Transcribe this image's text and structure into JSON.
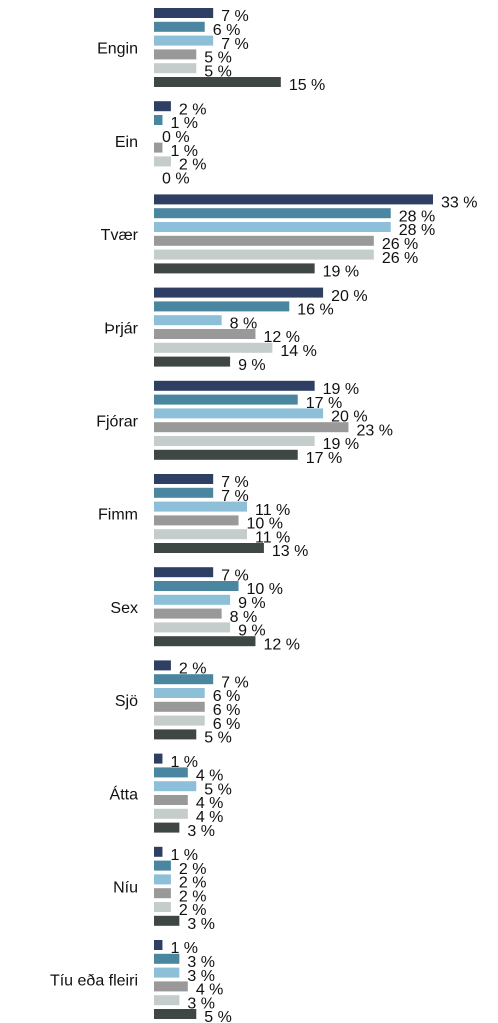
{
  "chart_data": {
    "type": "bar",
    "orientation": "horizontal",
    "categories": [
      "Engin",
      "Ein",
      "Tvær",
      "Þrjár",
      "Fjórar",
      "Fimm",
      "Sex",
      "Sjö",
      "Átta",
      "Níu",
      "Tíu eða fleiri"
    ],
    "series": [
      {
        "color": "#2e3f63",
        "values": [
          7,
          2,
          33,
          20,
          19,
          7,
          7,
          2,
          1,
          1,
          1
        ],
        "value_labels": [
          "7 %",
          "2 %",
          "33 %",
          "20 %",
          "19 %",
          "7 %",
          "7 %",
          "2 %",
          "1 %",
          "1 %",
          "1 %"
        ]
      },
      {
        "color": "#4a86a0",
        "values": [
          6,
          1,
          28,
          16,
          17,
          7,
          10,
          7,
          4,
          2,
          3
        ],
        "value_labels": [
          "6 %",
          "1 %",
          "28 %",
          "16 %",
          "17 %",
          "7 %",
          "10 %",
          "7 %",
          "4 %",
          "2 %",
          "3 %"
        ]
      },
      {
        "color": "#8dbfd9",
        "values": [
          7,
          0,
          28,
          8,
          20,
          11,
          9,
          6,
          5,
          2,
          3
        ],
        "value_labels": [
          "7 %",
          "0 %",
          "28 %",
          "8 %",
          "20 %",
          "11 %",
          "9 %",
          "6 %",
          "5 %",
          "2 %",
          "3 %"
        ]
      },
      {
        "color": "#999999",
        "values": [
          5,
          1,
          26,
          12,
          23,
          10,
          8,
          6,
          4,
          2,
          4
        ],
        "value_labels": [
          "5 %",
          "1 %",
          "26 %",
          "12 %",
          "23 %",
          "10 %",
          "8 %",
          "6 %",
          "4 %",
          "2 %",
          "4 %"
        ]
      },
      {
        "color": "#c4cccc",
        "values": [
          5,
          2,
          26,
          14,
          19,
          11,
          9,
          6,
          4,
          2,
          3
        ],
        "value_labels": [
          "5 %",
          "2 %",
          "26 %",
          "14 %",
          "19 %",
          "11 %",
          "9 %",
          "6 %",
          "4 %",
          "2 %",
          "3 %"
        ]
      },
      {
        "color": "#3f4745",
        "values": [
          15,
          0,
          19,
          9,
          17,
          13,
          12,
          5,
          3,
          3,
          5
        ],
        "value_labels": [
          "15 %",
          "0 %",
          "19 %",
          "9 %",
          "17 %",
          "13 %",
          "12 %",
          "5 %",
          "3 %",
          "3 %",
          "5 %"
        ]
      }
    ]
  }
}
